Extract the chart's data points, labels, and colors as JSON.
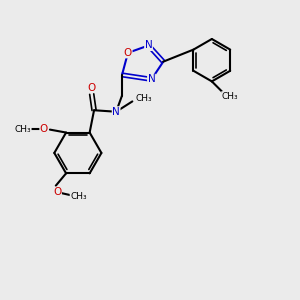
{
  "background_color": "#ebebeb",
  "black": "#000000",
  "blue": "#0000cc",
  "red": "#cc0000",
  "figsize": [
    3.0,
    3.0
  ],
  "dpi": 100,
  "xlim": [
    0,
    10
  ],
  "ylim": [
    0,
    10
  ]
}
